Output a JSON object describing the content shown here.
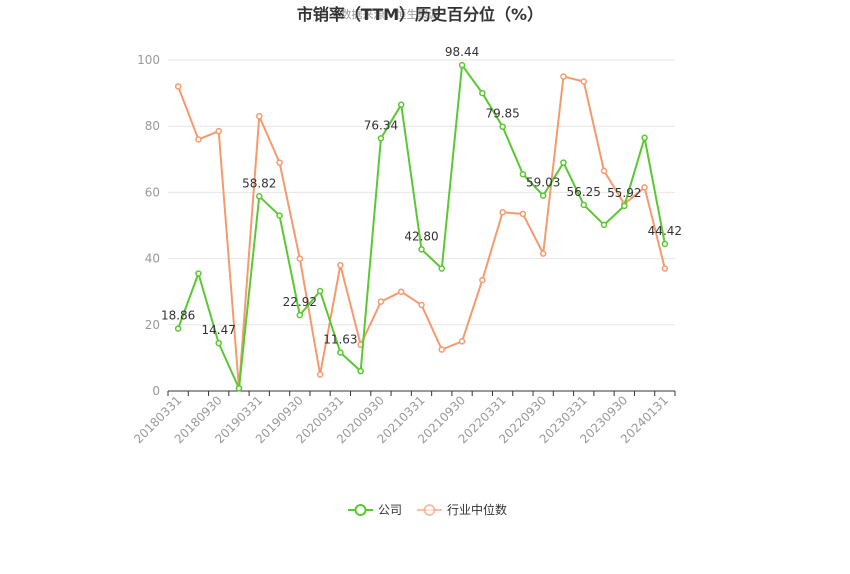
{
  "chart_data": {
    "type": "line",
    "title": "市销率（TTM）历史百分位（%）",
    "watermark": "数据来源：恒生聚源",
    "x": [
      "20180331",
      "20180630",
      "20180930",
      "20181231",
      "20190331",
      "20190630",
      "20190930",
      "20191231",
      "20200331",
      "20200630",
      "20200930",
      "20201231",
      "20210331",
      "20210630",
      "20210930",
      "20211231",
      "20220331",
      "20220630",
      "20220930",
      "20221231",
      "20230331",
      "20230630",
      "20230930",
      "20231231",
      "20240131"
    ],
    "xticks": [
      "20180331",
      "20180930",
      "20190331",
      "20190930",
      "20200331",
      "20200930",
      "20210331",
      "20210930",
      "20220331",
      "20220930",
      "20230331",
      "20230930",
      "20240131"
    ],
    "ylim": [
      0,
      100
    ],
    "yticks": [
      0,
      20,
      40,
      60,
      80,
      100
    ],
    "grid": true,
    "legend_position": "bottom",
    "series": [
      {
        "name": "公司",
        "color": "#5ac832",
        "values": [
          18.86,
          35.5,
          14.47,
          0.8,
          58.82,
          53.0,
          22.92,
          30.2,
          11.63,
          6.0,
          76.34,
          86.5,
          42.8,
          37.0,
          98.44,
          90.0,
          79.85,
          65.5,
          59.03,
          69.0,
          56.25,
          50.2,
          55.92,
          76.5,
          44.42
        ],
        "labels": {
          "0": "18.86",
          "2": "14.47",
          "4": "58.82",
          "6": "22.92",
          "8": "11.63",
          "10": "76.34",
          "12": "42.80",
          "14": "98.44",
          "16": "79.85",
          "18": "59.03",
          "20": "56.25",
          "22": "55.92",
          "24": "44.42"
        }
      },
      {
        "name": "行业中位数",
        "color": "#f59a6e",
        "values": [
          92.0,
          76.0,
          78.5,
          0.8,
          83.0,
          69.0,
          40.0,
          5.0,
          38.0,
          14.0,
          27.0,
          30.0,
          26.0,
          12.5,
          15.0,
          33.5,
          54.0,
          53.5,
          41.5,
          95.0,
          93.5,
          66.5,
          56.5,
          61.5,
          37.0
        ]
      }
    ]
  }
}
